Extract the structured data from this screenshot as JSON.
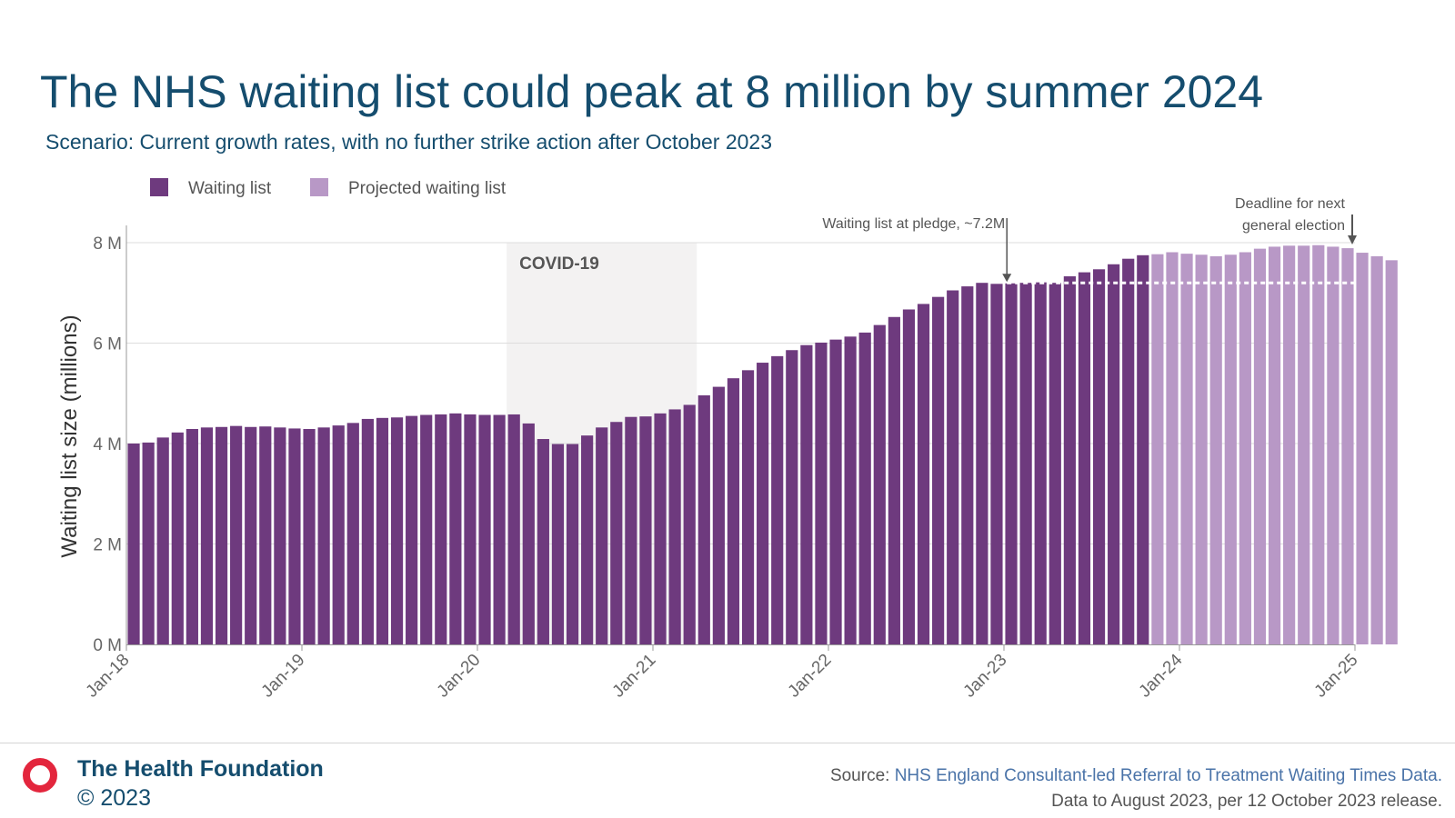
{
  "header": {
    "title": "The NHS waiting list could peak at 8 million by summer 2024",
    "subtitle": "Scenario: Current growth rates, with no further strike action after October 2023"
  },
  "colors": {
    "actual": "#6e3a7e",
    "projected": "#b898c6",
    "title": "#154d6e",
    "covid_band": "#f3f2f2",
    "gridline": "#dddddd",
    "logo": "#e3263d"
  },
  "chart_data": {
    "type": "bar",
    "ylabel": "Waiting list size (millions)",
    "xlabel": "",
    "ylim": [
      0,
      8
    ],
    "y_ticks": [
      {
        "value": 0,
        "label": "0 M"
      },
      {
        "value": 2,
        "label": "2 M"
      },
      {
        "value": 4,
        "label": "4 M"
      },
      {
        "value": 6,
        "label": "6 M"
      },
      {
        "value": 8,
        "label": "8 M"
      }
    ],
    "x_start": "2018-01",
    "x_end": "2025-01",
    "x_ticks": [
      "Jan-18",
      "Jan-19",
      "Jan-20",
      "Jan-21",
      "Jan-22",
      "Jan-23",
      "Jan-24",
      "Jan-25"
    ],
    "legend_position": "top-left",
    "grid": true,
    "series": [
      {
        "name": "Waiting list",
        "color": "#6e3a7e",
        "start": "2018-01",
        "values": [
          4.0,
          4.02,
          4.12,
          4.22,
          4.29,
          4.32,
          4.33,
          4.35,
          4.33,
          4.34,
          4.32,
          4.3,
          4.29,
          4.32,
          4.36,
          4.41,
          4.49,
          4.51,
          4.52,
          4.55,
          4.57,
          4.58,
          4.6,
          4.58,
          4.57,
          4.57,
          4.58,
          4.4,
          4.09,
          3.99,
          3.99,
          4.16,
          4.32,
          4.43,
          4.53,
          4.54,
          4.6,
          4.68,
          4.77,
          4.96,
          5.13,
          5.3,
          5.46,
          5.61,
          5.74,
          5.86,
          5.96,
          6.01,
          6.07,
          6.13,
          6.21,
          6.36,
          6.52,
          6.67,
          6.78,
          6.92,
          7.05,
          7.13,
          7.2,
          7.18,
          7.19,
          7.2,
          7.21,
          7.2,
          7.33,
          7.41,
          7.47,
          7.57,
          7.68,
          7.75
        ]
      },
      {
        "name": "Projected waiting list",
        "color": "#b898c6",
        "start": "2023-11",
        "values": [
          7.77,
          7.81,
          7.78,
          7.76,
          7.73,
          7.76,
          7.81,
          7.88,
          7.92,
          7.94,
          7.94,
          7.95,
          7.92,
          7.89,
          7.8,
          7.73,
          7.65
        ]
      }
    ],
    "annotations": [
      {
        "text": "COVID-19",
        "type": "band",
        "from": "2020-03",
        "to": "2021-04",
        "y_top": 8
      },
      {
        "text": "Waiting list at pledge, ~7.2M",
        "type": "arrow",
        "x": "2023-01",
        "reference_line_y": 7.2
      },
      {
        "text_line1": "Deadline for next",
        "text_line2": "general election",
        "type": "arrow",
        "x": "2025-01"
      }
    ]
  },
  "footer": {
    "org_name": "The Health Foundation",
    "copyright": "© 2023",
    "source_prefix": "Source: ",
    "source_link": "NHS England Consultant-led Referral to Treatment Waiting Times Data.",
    "data_note": "Data to August 2023, per 12 October 2023 release."
  }
}
